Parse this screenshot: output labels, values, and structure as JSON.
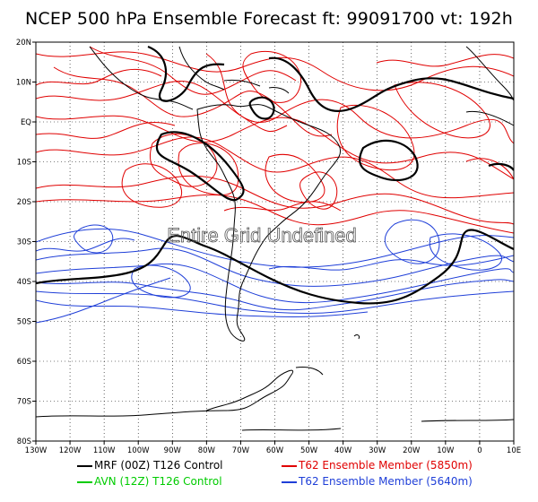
{
  "title": "NCEP 500 hPa Ensemble Forecast  ft: 99091700 vt: 192h",
  "overlay_text": "Entire Grid Undefined",
  "lat_labels": [
    "20N",
    "10N",
    "EQ",
    "10S",
    "20S",
    "30S",
    "40S",
    "50S",
    "60S",
    "70S",
    "80S"
  ],
  "lon_labels": [
    "130W",
    "120W",
    "110W",
    "100W",
    "90W",
    "80W",
    "70W",
    "60W",
    "50W",
    "40W",
    "30W",
    "20W",
    "10W",
    "0",
    "10E"
  ],
  "legend": [
    {
      "label": "MRF (00Z) T126 Control",
      "color": "#000000",
      "text_color": "#000000"
    },
    {
      "label": "T62 Ensemble Member (5850m)",
      "color": "#e00000",
      "text_color": "#e00000"
    },
    {
      "label": "AVN (12Z) T126 Control",
      "color": "#00cc00",
      "text_color": "#00cc00"
    },
    {
      "label": "T62 Ensemble Member (5640m)",
      "color": "#1f3fd8",
      "text_color": "#1f3fd8"
    }
  ],
  "colors": {
    "control": "#000000",
    "member_5850": "#e00000",
    "member_5640": "#1f3fd8",
    "coast": "#000000",
    "grid": "#000000"
  }
}
